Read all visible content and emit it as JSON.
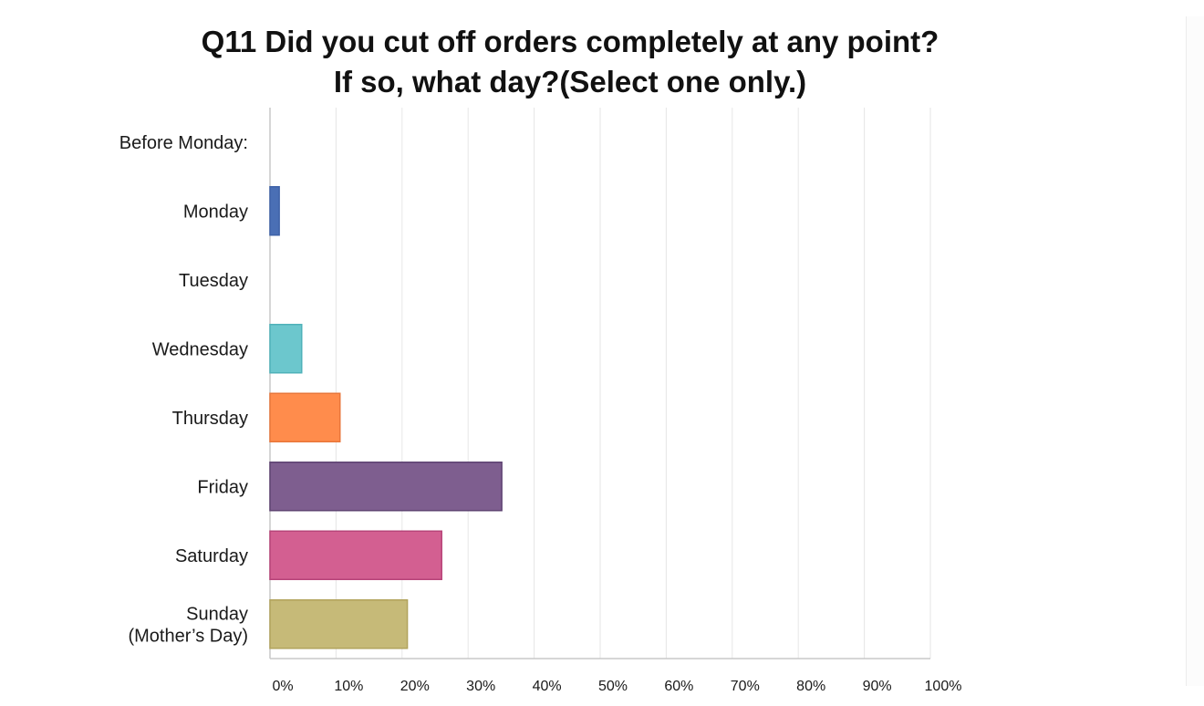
{
  "chart_data": {
    "type": "bar",
    "orientation": "horizontal",
    "title_lines": [
      "Q11 Did you cut off orders completely at any point?",
      "If so, what day?(Select one only.)"
    ],
    "categories": [
      [
        "Before Monday:"
      ],
      [
        "Monday"
      ],
      [
        "Tuesday"
      ],
      [
        "Wednesday"
      ],
      [
        "Thursday"
      ],
      [
        "Friday"
      ],
      [
        "Saturday"
      ],
      [
        "Sunday",
        "(Mother’s Day)"
      ]
    ],
    "values": [
      0,
      1.4,
      0,
      4.8,
      10.6,
      35.1,
      26,
      20.8
    ],
    "colors": [
      "#5b7ec0",
      "#4a6fb5",
      "#6bb7c0",
      "#6cc7cd",
      "#ff8c4c",
      "#7e5e8f",
      "#d35f91",
      "#c6ba78"
    ],
    "edge_colors": [
      "#3e62a8",
      "#3e62a8",
      "#4aa9b2",
      "#4fb2b9",
      "#e8763a",
      "#5e4372",
      "#b74479",
      "#b1a35c"
    ],
    "x_ticks": [
      "0%",
      "10%",
      "20%",
      "30%",
      "40%",
      "50%",
      "60%",
      "70%",
      "80%",
      "90%",
      "100%"
    ],
    "xlim": [
      0,
      100
    ],
    "grid": true,
    "legend": "none"
  }
}
